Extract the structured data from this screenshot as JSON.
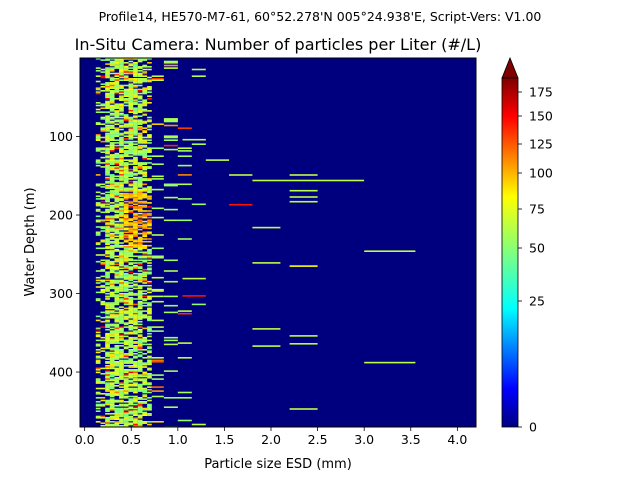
{
  "chart_data": {
    "type": "heatmap",
    "suptitle": "Profile14, HE570-M7-61, 60°52.278'N 005°24.938'E, Script-Vers: V1.00",
    "title": "In-Situ Camera: Number of particles per Liter (#/L)",
    "xlabel": "Particle size ESD (mm)",
    "ylabel": "Water Depth (m)",
    "xlim": [
      -0.05,
      4.2
    ],
    "ylim": [
      470,
      0
    ],
    "x_ticks": [
      "0.0",
      "0.5",
      "1.0",
      "1.5",
      "2.0",
      "2.5",
      "3.0",
      "3.5",
      "4.0"
    ],
    "y_ticks": [
      "100",
      "200",
      "300",
      "400"
    ],
    "colorbar": {
      "ticks": [
        "0",
        "25",
        "50",
        "75",
        "100",
        "125",
        "150",
        "175"
      ],
      "range": [
        0,
        190
      ],
      "scale": "nonlinear",
      "extend": "max",
      "colormap": "jet"
    },
    "background_value": 0,
    "depth_range_m": [
      0,
      470
    ],
    "grid": false,
    "notable_segments": [
      {
        "x_start": 1.05,
        "x_end": 1.3,
        "depth": 103,
        "value": 60
      },
      {
        "x_start": 1.3,
        "x_end": 1.55,
        "depth": 129,
        "value": 60
      },
      {
        "x_start": 1.55,
        "x_end": 1.8,
        "depth": 148,
        "value": 60
      },
      {
        "x_start": 1.8,
        "x_end": 2.2,
        "depth": 155,
        "value": 60
      },
      {
        "x_start": 2.2,
        "x_end": 3.0,
        "depth": 155,
        "value": 60
      },
      {
        "x_start": 2.2,
        "x_end": 2.5,
        "depth": 148,
        "value": 60
      },
      {
        "x_start": 2.2,
        "x_end": 2.5,
        "depth": 168,
        "value": 60
      },
      {
        "x_start": 2.2,
        "x_end": 2.5,
        "depth": 176,
        "value": 60
      },
      {
        "x_start": 2.2,
        "x_end": 2.5,
        "depth": 182,
        "value": 60
      },
      {
        "x_start": 1.55,
        "x_end": 1.8,
        "depth": 186,
        "value": 140
      },
      {
        "x_start": 1.8,
        "x_end": 2.1,
        "depth": 215,
        "value": 60
      },
      {
        "x_start": 3.0,
        "x_end": 3.55,
        "depth": 245,
        "value": 60
      },
      {
        "x_start": 1.8,
        "x_end": 2.1,
        "depth": 260,
        "value": 60
      },
      {
        "x_start": 2.2,
        "x_end": 2.5,
        "depth": 264,
        "value": 75
      },
      {
        "x_start": 1.8,
        "x_end": 2.1,
        "depth": 344,
        "value": 60
      },
      {
        "x_start": 2.2,
        "x_end": 2.5,
        "depth": 353,
        "value": 60
      },
      {
        "x_start": 2.2,
        "x_end": 2.5,
        "depth": 363,
        "value": 60
      },
      {
        "x_start": 1.8,
        "x_end": 2.1,
        "depth": 366,
        "value": 60
      },
      {
        "x_start": 3.0,
        "x_end": 3.55,
        "depth": 387,
        "value": 60
      },
      {
        "x_start": 2.2,
        "x_end": 2.5,
        "depth": 446,
        "value": 60
      },
      {
        "x_start": 1.05,
        "x_end": 1.3,
        "depth": 280,
        "value": 60
      },
      {
        "x_start": 1.05,
        "x_end": 1.3,
        "depth": 302,
        "value": 140
      }
    ]
  }
}
